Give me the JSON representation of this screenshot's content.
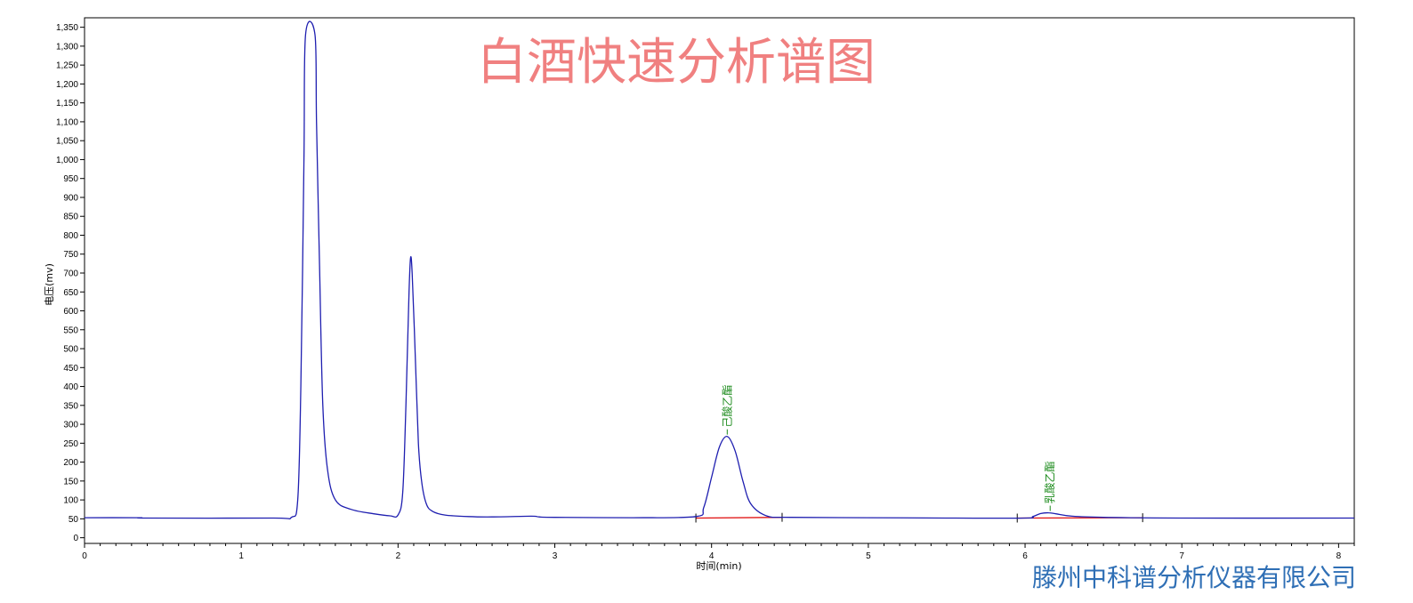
{
  "chart_data": {
    "type": "line",
    "title": "白酒快速分析谱图",
    "xlabel": "时间(min)",
    "ylabel": "电压(mv)",
    "xlim": [
      0,
      8.1
    ],
    "ylim": [
      -15,
      1375
    ],
    "x_ticks": [
      0,
      1,
      2,
      3,
      4,
      5,
      6,
      7,
      8
    ],
    "y_ticks": [
      0,
      50,
      100,
      150,
      200,
      250,
      300,
      350,
      400,
      450,
      500,
      550,
      600,
      650,
      700,
      750,
      800,
      850,
      900,
      950,
      1000,
      1050,
      1100,
      1150,
      1200,
      1250,
      1300,
      1350
    ],
    "y_tick_labels": [
      "0",
      "50",
      "100",
      "150",
      "200",
      "250",
      "300",
      "350",
      "400",
      "450",
      "500",
      "550",
      "600",
      "650",
      "700",
      "750",
      "800",
      "850",
      "900",
      "950",
      "1,000",
      "1,050",
      "1,100",
      "1,150",
      "1,200",
      "1,250",
      "1,300",
      "1,350"
    ],
    "baseline_mv": 50,
    "series": [
      {
        "x": [
          0,
          0.35,
          0.4,
          1.2,
          1.32,
          1.36,
          1.38,
          1.4,
          1.41,
          1.47,
          1.48,
          1.5,
          1.52,
          1.55,
          1.6,
          1.7,
          1.85,
          1.95,
          2.0,
          2.03,
          2.05,
          2.07,
          2.08,
          2.09,
          2.11,
          2.13,
          2.15,
          2.18,
          2.22,
          2.3,
          2.45,
          2.6,
          2.85,
          2.9,
          3.0,
          3.5,
          3.9,
          3.95,
          4.0,
          4.05,
          4.1,
          4.15,
          4.2,
          4.25,
          4.35,
          4.5,
          5.0,
          5.5,
          6.0,
          6.05,
          6.1,
          6.15,
          6.2,
          6.3,
          6.5,
          7.0,
          8.1
        ],
        "y": [
          53,
          53,
          52,
          52,
          54,
          100,
          400,
          1000,
          1330,
          1330,
          1100,
          700,
          350,
          180,
          100,
          75,
          63,
          58,
          60,
          120,
          350,
          650,
          740,
          700,
          480,
          250,
          150,
          90,
          70,
          60,
          56,
          55,
          57,
          55,
          54,
          53,
          56,
          80,
          160,
          240,
          268,
          230,
          150,
          90,
          58,
          54,
          53,
          52,
          52,
          56,
          64,
          66,
          63,
          57,
          54,
          52,
          52
        ]
      }
    ],
    "integration_baselines": [
      {
        "x": [
          3.9,
          4.45
        ],
        "y": [
          52,
          54
        ]
      },
      {
        "x": [
          5.95,
          6.75
        ],
        "y": [
          52,
          53
        ]
      }
    ],
    "peak_labels": [
      {
        "name": "己酸乙酯",
        "x": 4.1,
        "y": 268
      },
      {
        "name": "乳酸乙酯",
        "x": 6.16,
        "y": 66
      }
    ],
    "colors": {
      "trace": "#1f1fb0",
      "baseline": "#e01010",
      "axis": "#000000",
      "title": "#f08080",
      "peak_label": "#1a8a1a",
      "company": "#2f6fb5"
    }
  },
  "footer": {
    "company": "滕州中科谱分析仪器有限公司"
  }
}
